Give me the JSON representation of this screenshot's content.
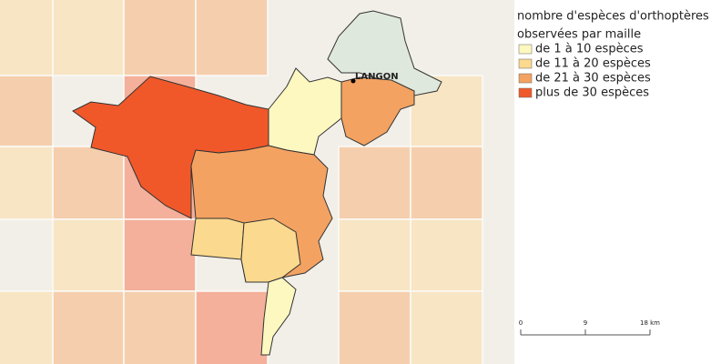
{
  "legend": {
    "title_lines": [
      "nombre d'espèces d'orthoptères",
      "observées par maille"
    ],
    "items": [
      {
        "label": "de 1 à 10 espèces",
        "color": "#fdf7c0"
      },
      {
        "label": "de 11 à 20 espèces",
        "color": "#fbd98e"
      },
      {
        "label": "de 21 à 30 espèces",
        "color": "#f4a261"
      },
      {
        "label": "plus de 30 espèces",
        "color": "#f0582a"
      }
    ]
  },
  "map": {
    "city_label": "LANGON"
  },
  "scale_bar": {
    "labels": [
      "0",
      "9",
      "18 km"
    ]
  }
}
